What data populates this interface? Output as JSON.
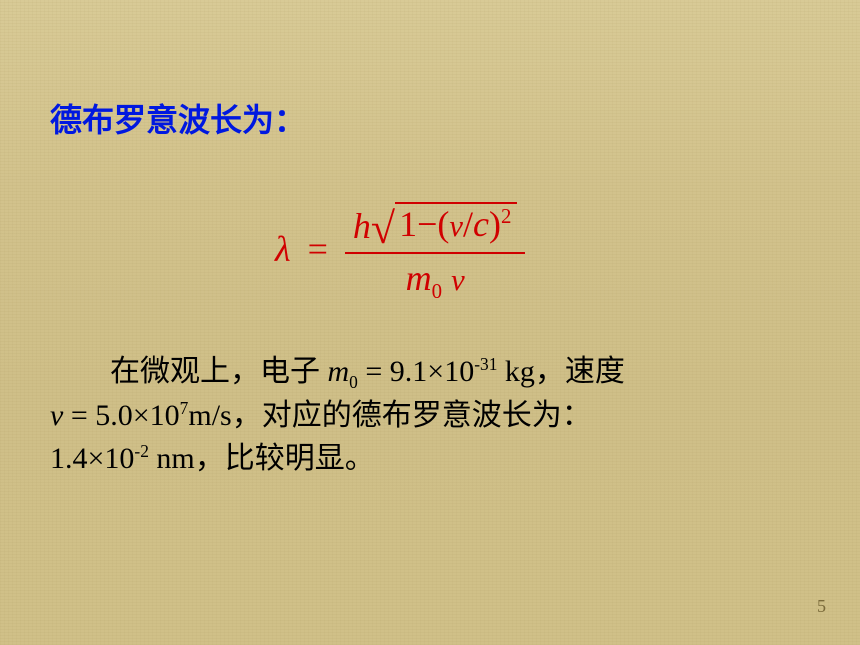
{
  "heading": "德布罗意波长为：",
  "formula": {
    "lambda": "λ",
    "equals": "=",
    "h": "h",
    "one": "1",
    "minus": "−",
    "lparen": "(",
    "v_small": "v",
    "slash": "/",
    "c": "c",
    "rparen": ")",
    "sq": "2",
    "m": "m",
    "zero": "0",
    "v_den": "v"
  },
  "body": {
    "p1": "在微观上，电子 ",
    "m0": "m",
    "m0sub": "0",
    "eq1": " = 9.1",
    "times1": "×",
    "ten1": "10",
    "exp1": "-31",
    "kg": " kg，速度",
    "vline": "v",
    "eq2": " = 5.0",
    "times2": "×",
    "ten2": "10",
    "exp2": "7",
    "ms": "m/s，对应的德布罗意波长为：",
    "val": "1.4×10",
    "exp3": "-2",
    "nm": " nm，比较明显。"
  },
  "pageNumber": "5",
  "colors": {
    "heading": "#0018e0",
    "formula": "#d00000",
    "body": "#000000",
    "pagenum": "#7a6a3a",
    "background": "#d4c490"
  },
  "fonts": {
    "cjk": "SimSun",
    "latin": "Times New Roman",
    "heading_size_pt": 24,
    "body_size_pt": 22,
    "formula_size_pt": 27
  }
}
